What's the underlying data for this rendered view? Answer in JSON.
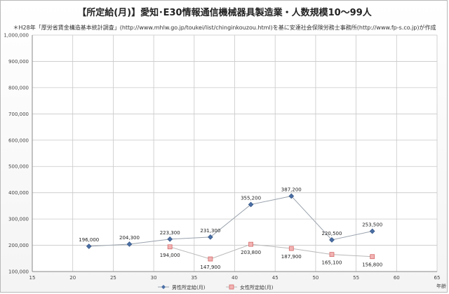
{
  "chart_data": {
    "type": "line",
    "title": "【所定給(月)】愛知･E30情報通信機械器具製造業・人数規模10～99人",
    "subtitle": "＊H28年「厚労省賃金構造基本統計調査」(http://www.mhlw.go.jp/toukei/list/chinginkouzou.html)を基に安達社会保険労務士事務所(http://www.fp-s.co.jp)が作成",
    "xlabel": "年齢",
    "ylabel": "",
    "xlim": [
      15,
      65
    ],
    "ylim": [
      100000,
      1000000
    ],
    "x_ticks": [
      15,
      20,
      25,
      30,
      35,
      40,
      45,
      50,
      55,
      60,
      65
    ],
    "y_ticks": [
      100000,
      200000,
      300000,
      400000,
      500000,
      600000,
      700000,
      800000,
      900000,
      1000000
    ],
    "y_tick_labels": [
      "100,000",
      "200,000",
      "300,000",
      "400,000",
      "500,000",
      "600,000",
      "700,000",
      "800,000",
      "900,000",
      "1,000,000"
    ],
    "grid": true,
    "legend_position": "bottom",
    "series": [
      {
        "name": "男性所定給(月)",
        "color": "#4a6fa5",
        "marker": "diamond",
        "x": [
          22,
          27,
          32,
          37,
          42,
          47,
          52,
          57
        ],
        "y": [
          196000,
          204300,
          223300,
          231300,
          355200,
          387200,
          220500,
          253500
        ],
        "labels": [
          "196,000",
          "204,300",
          "223,300",
          "231,300",
          "355,200",
          "387,200",
          "220,500",
          "253,500"
        ]
      },
      {
        "name": "女性所定給(月)",
        "color": "#d46a6a",
        "marker": "square",
        "x": [
          32,
          37,
          42,
          47,
          52,
          57
        ],
        "y": [
          194000,
          147900,
          203800,
          187900,
          165100,
          156800
        ],
        "labels": [
          "194,000",
          "147,900",
          "203,800",
          "187,900",
          "165,100",
          "156,800"
        ]
      }
    ]
  }
}
